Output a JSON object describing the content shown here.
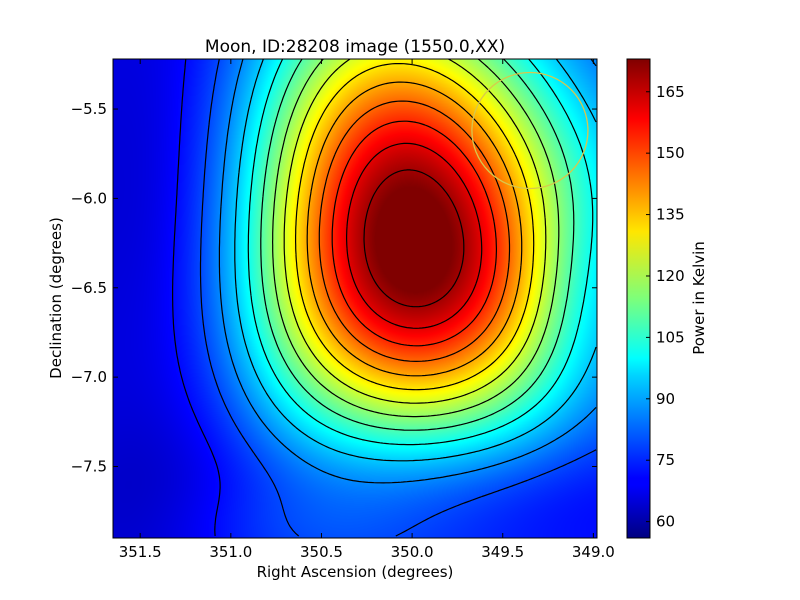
{
  "chart_data": {
    "type": "heatmap",
    "title": "Moon, ID:28208 image (1550.0,XX)",
    "xlabel": "Right Ascension (degrees)",
    "ylabel": "Declination (degrees)",
    "colorbar_label": "Power in Kelvin",
    "colormap": "jet",
    "xlim": [
      351.65,
      348.98
    ],
    "ylim": [
      -7.9,
      -5.22
    ],
    "x_ticks": [
      351.5,
      351.0,
      350.5,
      350.0,
      349.5,
      349.0
    ],
    "x_tick_labels": [
      "351.5",
      "351.0",
      "350.5",
      "350.0",
      "349.5",
      "349.0"
    ],
    "y_ticks": [
      -5.5,
      -6.0,
      -6.5,
      -7.0,
      -7.5
    ],
    "y_tick_labels": [
      "−5.5",
      "−6.0",
      "−6.5",
      "−7.0",
      "−7.5"
    ],
    "colorbar_range": [
      56,
      173
    ],
    "colorbar_ticks": [
      60,
      75,
      90,
      105,
      120,
      135,
      150,
      165
    ],
    "colorbar_tick_labels": [
      "60",
      "75",
      "90",
      "105",
      "120",
      "135",
      "150",
      "165"
    ],
    "background_level_K": 72,
    "peak": {
      "ra": 349.97,
      "dec": -6.06,
      "value_K": 172
    },
    "contour_interval_K": 7.5,
    "circle": {
      "center_ra": 349.35,
      "center_dec": -5.62,
      "radius_deg": 0.32,
      "color": "#d8c84c"
    },
    "grid": false
  }
}
